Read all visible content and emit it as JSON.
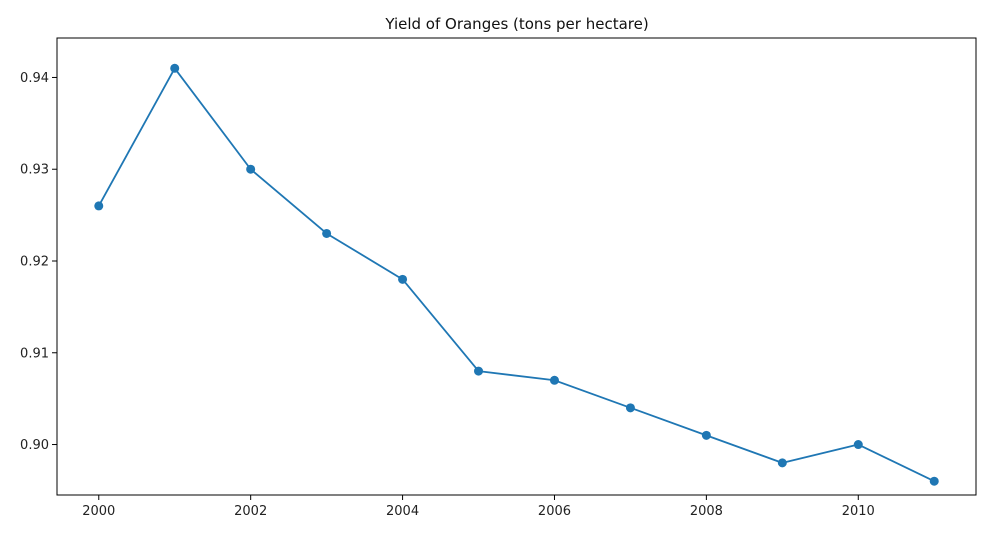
{
  "chart_data": {
    "type": "line",
    "title": "Yield of Oranges (tons per hectare)",
    "xlabel": "",
    "ylabel": "",
    "x": [
      2000,
      2001,
      2002,
      2003,
      2004,
      2005,
      2006,
      2007,
      2008,
      2009,
      2010,
      2011
    ],
    "series": [
      {
        "values": [
          0.926,
          0.941,
          0.93,
          0.923,
          0.918,
          0.908,
          0.907,
          0.904,
          0.901,
          0.898,
          0.9,
          0.896
        ]
      }
    ],
    "xlim": [
      1999.45,
      2011.55
    ],
    "ylim": [
      0.8945,
      0.9443
    ],
    "x_ticks": [
      2000,
      2002,
      2004,
      2006,
      2008,
      2010
    ],
    "x_tick_labels": [
      "2000",
      "2002",
      "2004",
      "2006",
      "2008",
      "2010"
    ],
    "y_ticks": [
      0.9,
      0.91,
      0.92,
      0.93,
      0.94
    ],
    "y_tick_labels": [
      "0.90",
      "0.91",
      "0.92",
      "0.93",
      "0.94"
    ],
    "grid": false,
    "legend": "none",
    "line_color": "#1f77b4",
    "marker": "circle"
  }
}
